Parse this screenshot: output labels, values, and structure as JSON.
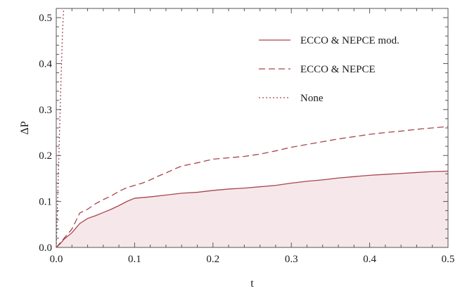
{
  "chart_data": {
    "type": "line",
    "title": "",
    "xlabel": "t",
    "ylabel": "ΔP",
    "xlim": [
      0.0,
      0.5
    ],
    "ylim": [
      0.0,
      0.52
    ],
    "xticks": [
      "0.0",
      "0.1",
      "0.2",
      "0.3",
      "0.4",
      "0.5"
    ],
    "yticks": [
      "0.0",
      "0.1",
      "0.2",
      "0.3",
      "0.4",
      "0.5"
    ],
    "grid": false,
    "legend_position": "top-right",
    "colors": {
      "line": "#a8464e",
      "fill": "#f6e8ea",
      "frame": "#555555"
    },
    "series": [
      {
        "name": "ECCO & NEPCE mod.",
        "style": "solid",
        "filled": true,
        "x": [
          0,
          0.005,
          0.01,
          0.02,
          0.03,
          0.04,
          0.05,
          0.06,
          0.07,
          0.08,
          0.09,
          0.1,
          0.12,
          0.14,
          0.16,
          0.18,
          0.2,
          0.22,
          0.24,
          0.26,
          0.28,
          0.3,
          0.32,
          0.34,
          0.36,
          0.38,
          0.4,
          0.42,
          0.44,
          0.46,
          0.48,
          0.5
        ],
        "y": [
          0,
          0.008,
          0.018,
          0.032,
          0.052,
          0.063,
          0.069,
          0.076,
          0.083,
          0.091,
          0.1,
          0.107,
          0.11,
          0.114,
          0.118,
          0.12,
          0.124,
          0.127,
          0.129,
          0.132,
          0.135,
          0.14,
          0.144,
          0.147,
          0.151,
          0.154,
          0.157,
          0.159,
          0.161,
          0.163,
          0.165,
          0.166
        ]
      },
      {
        "name": "ECCO & NEPCE",
        "style": "dashed",
        "filled": false,
        "x": [
          0,
          0.005,
          0.01,
          0.02,
          0.03,
          0.04,
          0.05,
          0.06,
          0.07,
          0.08,
          0.09,
          0.1,
          0.11,
          0.12,
          0.13,
          0.14,
          0.15,
          0.16,
          0.18,
          0.2,
          0.22,
          0.24,
          0.26,
          0.28,
          0.3,
          0.32,
          0.34,
          0.36,
          0.38,
          0.4,
          0.42,
          0.44,
          0.46,
          0.48,
          0.5
        ],
        "y": [
          0,
          0.01,
          0.02,
          0.04,
          0.075,
          0.083,
          0.095,
          0.104,
          0.112,
          0.122,
          0.13,
          0.135,
          0.14,
          0.147,
          0.155,
          0.162,
          0.17,
          0.177,
          0.184,
          0.192,
          0.195,
          0.198,
          0.203,
          0.21,
          0.218,
          0.224,
          0.23,
          0.236,
          0.241,
          0.246,
          0.25,
          0.253,
          0.257,
          0.26,
          0.263
        ]
      },
      {
        "name": "None",
        "style": "dotted",
        "filled": false,
        "x": [
          0,
          0.001,
          0.002,
          0.004,
          0.006,
          0.008,
          0.0095
        ],
        "y": [
          0,
          0.05,
          0.12,
          0.24,
          0.36,
          0.47,
          0.52
        ]
      }
    ]
  }
}
